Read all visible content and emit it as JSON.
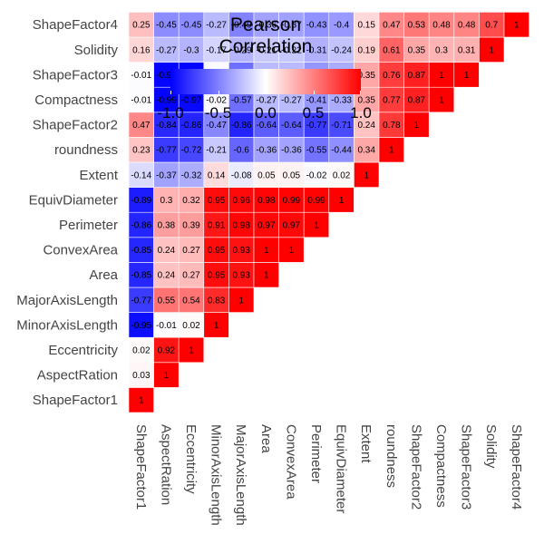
{
  "chart_data": {
    "type": "heatmap",
    "variables": [
      "ShapeFactor1",
      "AspectRation",
      "Eccentricity",
      "MinorAxisLength",
      "MajorAxisLength",
      "Area",
      "ConvexArea",
      "Perimeter",
      "EquivDiameter",
      "Extent",
      "roundness",
      "ShapeFactor2",
      "Compactness",
      "ShapeFactor3",
      "Solidity",
      "ShapeFactor4"
    ],
    "matrix": [
      [
        "1"
      ],
      [
        "0.03",
        "1"
      ],
      [
        "0.02",
        "0.92",
        "1"
      ],
      [
        "-0.95",
        "-0.01",
        "0.02",
        "1"
      ],
      [
        "-0.77",
        "0.55",
        "0.54",
        "0.83",
        "1"
      ],
      [
        "-0.85",
        "0.24",
        "0.27",
        "0.95",
        "0.93",
        "1"
      ],
      [
        "-0.85",
        "0.24",
        "0.27",
        "0.95",
        "0.93",
        "1",
        "1"
      ],
      [
        "-0.86",
        "0.38",
        "0.39",
        "0.91",
        "0.98",
        "0.97",
        "0.97",
        "1"
      ],
      [
        "-0.89",
        "0.3",
        "0.32",
        "0.95",
        "0.96",
        "0.98",
        "0.99",
        "0.99",
        "1"
      ],
      [
        "-0.14",
        "-0.37",
        "-0.32",
        "0.14",
        "-0.08",
        "0.05",
        "0.05",
        "-0.02",
        "0.02",
        "1"
      ],
      [
        "0.23",
        "-0.77",
        "-0.72",
        "-0.21",
        "-0.6",
        "-0.36",
        "-0.36",
        "-0.55",
        "-0.44",
        "0.34",
        "1"
      ],
      [
        "0.47",
        "-0.84",
        "-0.86",
        "-0.47",
        "-0.86",
        "-0.64",
        "-0.64",
        "-0.77",
        "-0.71",
        "0.24",
        "0.78",
        "1"
      ],
      [
        "-0.01",
        "-0.99",
        "-0.97",
        "-0.02",
        "-0.57",
        "-0.27",
        "-0.27",
        "-0.41",
        "-0.33",
        "0.35",
        "0.77",
        "0.87",
        "1"
      ],
      [
        "-0.01",
        "-0.98",
        "-0.98",
        "-0.02",
        "-0.57",
        "-0.27",
        "-0.27",
        "-0.41",
        "-0.33",
        "0.35",
        "0.76",
        "0.87",
        "1",
        "1"
      ],
      [
        "0.16",
        "-0.27",
        "-0.3",
        "-0.17",
        "-0.29",
        "-0.21",
        "-0.22",
        "-0.31",
        "-0.24",
        "0.19",
        "0.61",
        "0.35",
        "0.3",
        "0.31",
        "1"
      ],
      [
        "0.25",
        "-0.45",
        "-0.45",
        "-0.27",
        "-0.49",
        "-0.36",
        "-0.37",
        "-0.43",
        "-0.4",
        "0.15",
        "0.47",
        "0.53",
        "0.48",
        "0.48",
        "0.7",
        "1"
      ]
    ],
    "legend": {
      "title_line1": "Pearson",
      "title_line2": "Correlation",
      "ticks": [
        "-1.0",
        "-0.5",
        "0.0",
        "0.5",
        "1.0"
      ],
      "range": [
        -1,
        1
      ],
      "colors": {
        "low": "#0000ff",
        "mid": "#ffffff",
        "high": "#ff0000"
      }
    }
  }
}
